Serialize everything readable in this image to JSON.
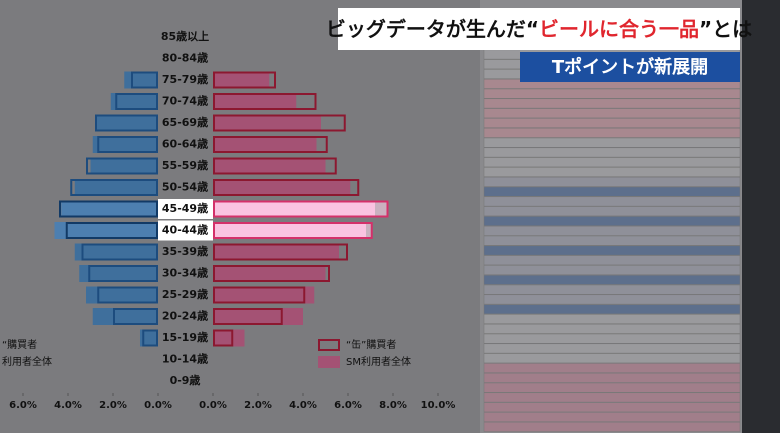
{
  "headline": [
    "ビッグデータが生んだ“",
    "ビールに合う一品",
    "”とは"
  ],
  "subheadline": "Tポイントが新展開",
  "chart_data": {
    "type": "butterfly",
    "categories": [
      "85歳以上",
      "80-84歳",
      "75-79歳",
      "70-74歳",
      "65-69歳",
      "60-64歳",
      "55-59歳",
      "50-54歳",
      "45-49歳",
      "40-44歳",
      "35-39歳",
      "30-34歳",
      "25-29歳",
      "20-24歳",
      "15-19歳",
      "10-14歳",
      "0-9歳"
    ],
    "highlight": [
      "45-49歳",
      "40-44歳"
    ],
    "left": {
      "xlim": [
        0,
        6
      ],
      "xticks": [
        {
          "value": 6,
          "label": "6.0%"
        },
        {
          "value": 4,
          "label": "4.0%"
        },
        {
          "value": 2,
          "label": "2.0%"
        },
        {
          "value": 0,
          "label": "0.0%"
        }
      ],
      "series": [
        {
          "name": "“購買者",
          "style": "outline",
          "color": "#1d4c7e",
          "values": [
            0,
            0,
            1.2,
            1.9,
            2.8,
            2.7,
            3.2,
            3.9,
            4.4,
            4.1,
            3.4,
            3.1,
            2.7,
            2.0,
            0.7,
            0,
            0
          ]
        },
        {
          "name": "利用者全体",
          "style": "fill",
          "color": "#3f6f9c",
          "values": [
            0,
            0,
            1.5,
            2.1,
            2.8,
            2.9,
            3.0,
            3.7,
            4.3,
            4.6,
            3.7,
            3.5,
            3.2,
            2.9,
            0.8,
            0,
            0
          ]
        }
      ]
    },
    "right": {
      "xlim": [
        0,
        10
      ],
      "xticks": [
        {
          "value": 0,
          "label": "0.0%"
        },
        {
          "value": 2,
          "label": "2.0%"
        },
        {
          "value": 4,
          "label": "4.0%"
        },
        {
          "value": 6,
          "label": "6.0%"
        },
        {
          "value": 8,
          "label": "8.0%"
        },
        {
          "value": 10,
          "label": "10.0%"
        }
      ],
      "series": [
        {
          "name": "“缶”購買者",
          "style": "outline",
          "color": "#8c1830",
          "values": [
            0,
            0,
            2.8,
            4.6,
            5.9,
            5.1,
            5.5,
            6.5,
            7.8,
            7.1,
            6.0,
            5.2,
            4.1,
            3.1,
            0.9,
            0,
            0
          ]
        },
        {
          "name": "SM利用者全体",
          "style": "fill",
          "color": "#a45274",
          "values": [
            0,
            0,
            2.5,
            3.7,
            4.8,
            4.6,
            5.0,
            6.1,
            7.2,
            6.8,
            5.6,
            5.0,
            4.5,
            4.0,
            1.4,
            0,
            0
          ]
        }
      ]
    }
  }
}
